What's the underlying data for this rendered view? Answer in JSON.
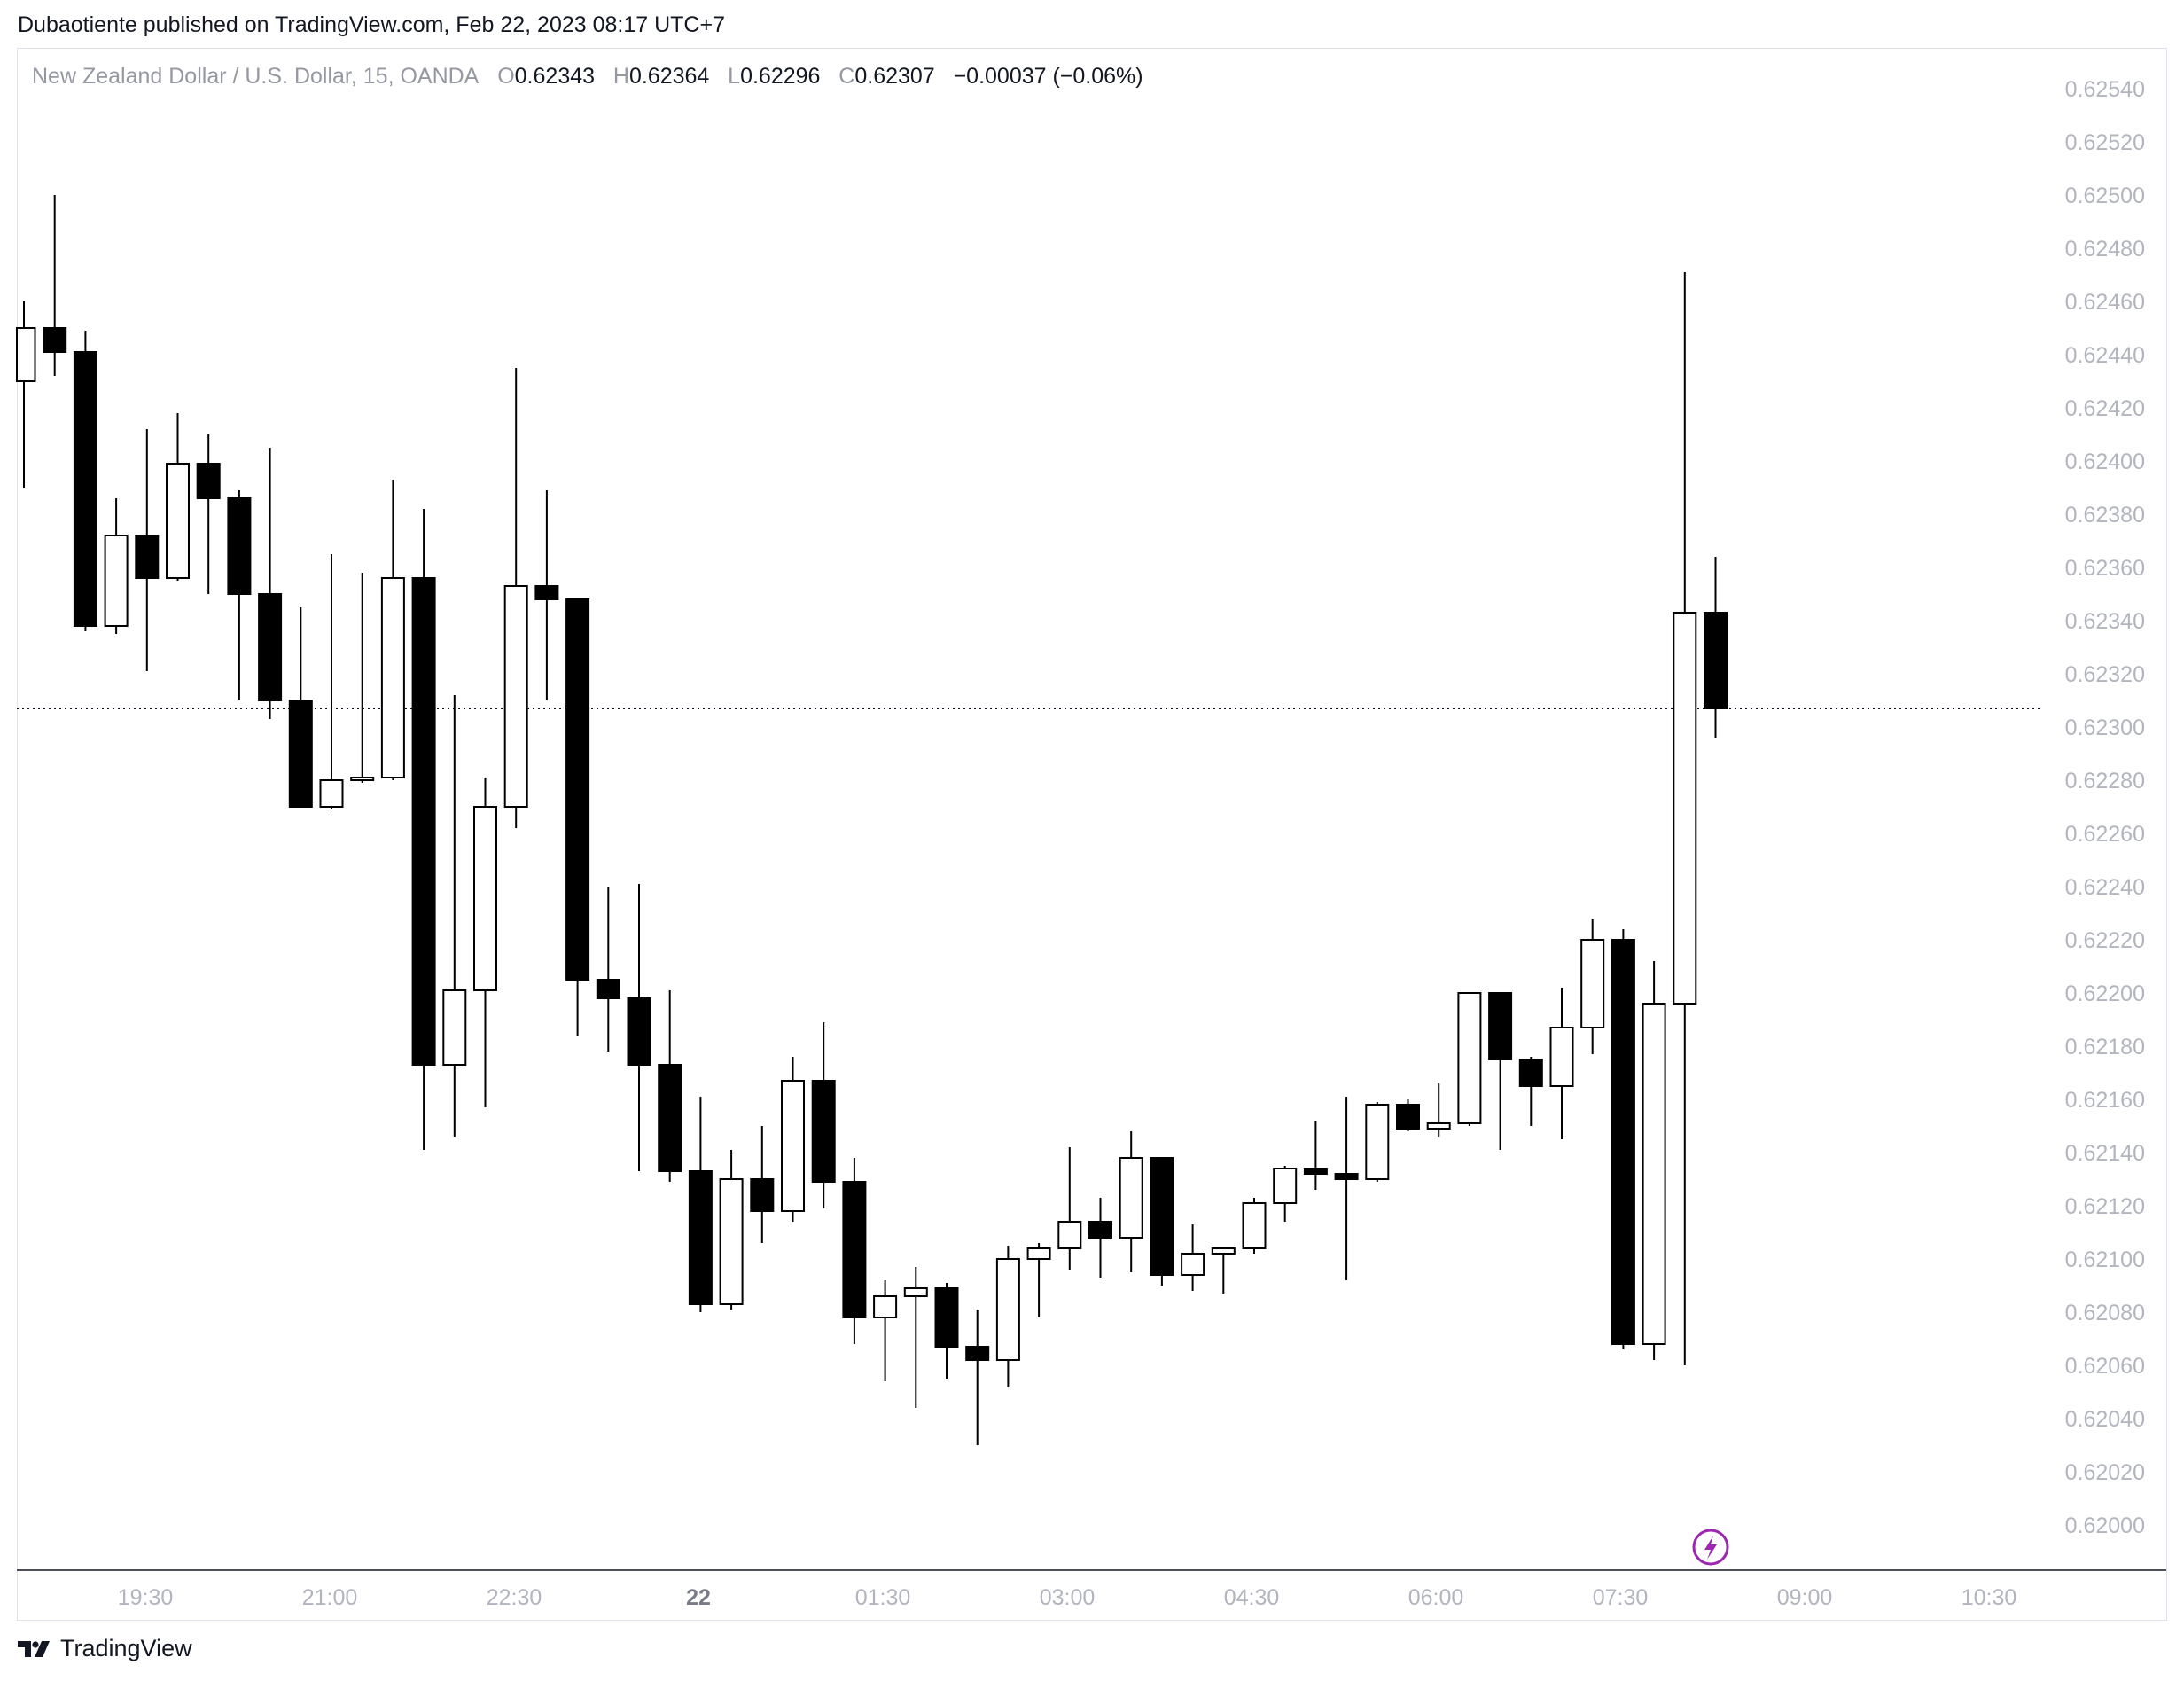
{
  "header": {
    "published_line": "Dubaotiente published on TradingView.com, Feb 22, 2023 08:17 UTC+7"
  },
  "legend": {
    "symbol": "New Zealand Dollar / U.S. Dollar, 15, OANDA",
    "o_label": "O",
    "o_value": "0.62343",
    "h_label": "H",
    "h_value": "0.62364",
    "l_label": "L",
    "l_value": "0.62296",
    "c_label": "C",
    "c_value": "0.62307",
    "change": "−0.00037 (−0.06%)"
  },
  "footer": {
    "brand": "TradingView"
  },
  "colors": {
    "up_body": "#ffffff",
    "down_body": "#000000",
    "wick": "#000000",
    "axis_text": "#b2b5be",
    "bold_axis_text": "#787b86",
    "price_line": "#131722",
    "lightning_icon": "#9c27b0"
  },
  "chart_data": {
    "type": "candlestick",
    "instrument": "NZDUSD",
    "interval_minutes": 15,
    "y_ticks": [
      "0.62540",
      "0.62520",
      "0.62500",
      "0.62480",
      "0.62460",
      "0.62440",
      "0.62420",
      "0.62400",
      "0.62380",
      "0.62360",
      "0.62340",
      "0.62320",
      "0.62300",
      "0.62280",
      "0.62260",
      "0.62240",
      "0.62220",
      "0.62200",
      "0.62180",
      "0.62160",
      "0.62140",
      "0.62120",
      "0.62100",
      "0.62080",
      "0.62060",
      "0.62040",
      "0.62020",
      "0.62000"
    ],
    "x_ticks": [
      "19:30",
      "21:00",
      "22:30",
      "22",
      "01:30",
      "03:00",
      "04:30",
      "06:00",
      "07:30",
      "09:00",
      "10:30"
    ],
    "x_ticks_bold": [
      "22"
    ],
    "last_price": 0.62307,
    "price_line_style": "dotted",
    "candles": [
      {
        "o": 0.6243,
        "h": 0.6246,
        "l": 0.6239,
        "c": 0.6245
      },
      {
        "o": 0.6245,
        "h": 0.625,
        "l": 0.62432,
        "c": 0.62441
      },
      {
        "o": 0.62441,
        "h": 0.62449,
        "l": 0.62336,
        "c": 0.62338
      },
      {
        "o": 0.62338,
        "h": 0.62386,
        "l": 0.62335,
        "c": 0.62372
      },
      {
        "o": 0.62372,
        "h": 0.62412,
        "l": 0.62321,
        "c": 0.62356
      },
      {
        "o": 0.62356,
        "h": 0.62418,
        "l": 0.62355,
        "c": 0.62399
      },
      {
        "o": 0.62399,
        "h": 0.6241,
        "l": 0.6235,
        "c": 0.62386
      },
      {
        "o": 0.62386,
        "h": 0.62389,
        "l": 0.6231,
        "c": 0.6235
      },
      {
        "o": 0.6235,
        "h": 0.62405,
        "l": 0.62303,
        "c": 0.6231
      },
      {
        "o": 0.6231,
        "h": 0.62345,
        "l": 0.6227,
        "c": 0.6227
      },
      {
        "o": 0.6227,
        "h": 0.62365,
        "l": 0.62269,
        "c": 0.6228
      },
      {
        "o": 0.6228,
        "h": 0.62358,
        "l": 0.62279,
        "c": 0.62281
      },
      {
        "o": 0.62281,
        "h": 0.62393,
        "l": 0.6228,
        "c": 0.62356
      },
      {
        "o": 0.62356,
        "h": 0.62382,
        "l": 0.62141,
        "c": 0.62173
      },
      {
        "o": 0.62173,
        "h": 0.62312,
        "l": 0.62146,
        "c": 0.62201
      },
      {
        "o": 0.62201,
        "h": 0.62281,
        "l": 0.62157,
        "c": 0.6227
      },
      {
        "o": 0.6227,
        "h": 0.62435,
        "l": 0.62262,
        "c": 0.62353
      },
      {
        "o": 0.62353,
        "h": 0.62389,
        "l": 0.6231,
        "c": 0.62348
      },
      {
        "o": 0.62348,
        "h": 0.62348,
        "l": 0.62184,
        "c": 0.62205
      },
      {
        "o": 0.62205,
        "h": 0.6224,
        "l": 0.62178,
        "c": 0.62198
      },
      {
        "o": 0.62198,
        "h": 0.62241,
        "l": 0.62133,
        "c": 0.62173
      },
      {
        "o": 0.62173,
        "h": 0.62201,
        "l": 0.62129,
        "c": 0.62133
      },
      {
        "o": 0.62133,
        "h": 0.62161,
        "l": 0.6208,
        "c": 0.62083
      },
      {
        "o": 0.62083,
        "h": 0.62141,
        "l": 0.62081,
        "c": 0.6213
      },
      {
        "o": 0.6213,
        "h": 0.6215,
        "l": 0.62106,
        "c": 0.62118
      },
      {
        "o": 0.62118,
        "h": 0.62176,
        "l": 0.62114,
        "c": 0.62167
      },
      {
        "o": 0.62167,
        "h": 0.62189,
        "l": 0.62119,
        "c": 0.62129
      },
      {
        "o": 0.62129,
        "h": 0.62138,
        "l": 0.62068,
        "c": 0.62078
      },
      {
        "o": 0.62078,
        "h": 0.62092,
        "l": 0.62054,
        "c": 0.62086
      },
      {
        "o": 0.62086,
        "h": 0.62097,
        "l": 0.62044,
        "c": 0.62089
      },
      {
        "o": 0.62089,
        "h": 0.62091,
        "l": 0.62055,
        "c": 0.62067
      },
      {
        "o": 0.62067,
        "h": 0.62081,
        "l": 0.6203,
        "c": 0.62062
      },
      {
        "o": 0.62062,
        "h": 0.62105,
        "l": 0.62052,
        "c": 0.621
      },
      {
        "o": 0.621,
        "h": 0.62106,
        "l": 0.62078,
        "c": 0.62104
      },
      {
        "o": 0.62104,
        "h": 0.62142,
        "l": 0.62096,
        "c": 0.62114
      },
      {
        "o": 0.62114,
        "h": 0.62123,
        "l": 0.62093,
        "c": 0.62108
      },
      {
        "o": 0.62108,
        "h": 0.62148,
        "l": 0.62095,
        "c": 0.62138
      },
      {
        "o": 0.62138,
        "h": 0.62138,
        "l": 0.6209,
        "c": 0.62094
      },
      {
        "o": 0.62094,
        "h": 0.62113,
        "l": 0.62088,
        "c": 0.62102
      },
      {
        "o": 0.62102,
        "h": 0.62104,
        "l": 0.62087,
        "c": 0.62104
      },
      {
        "o": 0.62104,
        "h": 0.62123,
        "l": 0.62102,
        "c": 0.62121
      },
      {
        "o": 0.62121,
        "h": 0.62135,
        "l": 0.62114,
        "c": 0.62134
      },
      {
        "o": 0.62134,
        "h": 0.62152,
        "l": 0.62126,
        "c": 0.62132
      },
      {
        "o": 0.62132,
        "h": 0.62161,
        "l": 0.62092,
        "c": 0.6213
      },
      {
        "o": 0.6213,
        "h": 0.62159,
        "l": 0.62129,
        "c": 0.62158
      },
      {
        "o": 0.62158,
        "h": 0.6216,
        "l": 0.62148,
        "c": 0.62149
      },
      {
        "o": 0.62149,
        "h": 0.62166,
        "l": 0.62146,
        "c": 0.62151
      },
      {
        "o": 0.62151,
        "h": 0.622,
        "l": 0.6215,
        "c": 0.622
      },
      {
        "o": 0.622,
        "h": 0.622,
        "l": 0.62141,
        "c": 0.62175
      },
      {
        "o": 0.62175,
        "h": 0.62176,
        "l": 0.6215,
        "c": 0.62165
      },
      {
        "o": 0.62165,
        "h": 0.62202,
        "l": 0.62145,
        "c": 0.62187
      },
      {
        "o": 0.62187,
        "h": 0.62228,
        "l": 0.62177,
        "c": 0.6222
      },
      {
        "o": 0.6222,
        "h": 0.62224,
        "l": 0.62066,
        "c": 0.62068
      },
      {
        "o": 0.62068,
        "h": 0.62212,
        "l": 0.62062,
        "c": 0.62196
      },
      {
        "o": 0.62196,
        "h": 0.62471,
        "l": 0.6206,
        "c": 0.62343
      },
      {
        "o": 0.62343,
        "h": 0.62364,
        "l": 0.62296,
        "c": 0.62307
      }
    ]
  }
}
